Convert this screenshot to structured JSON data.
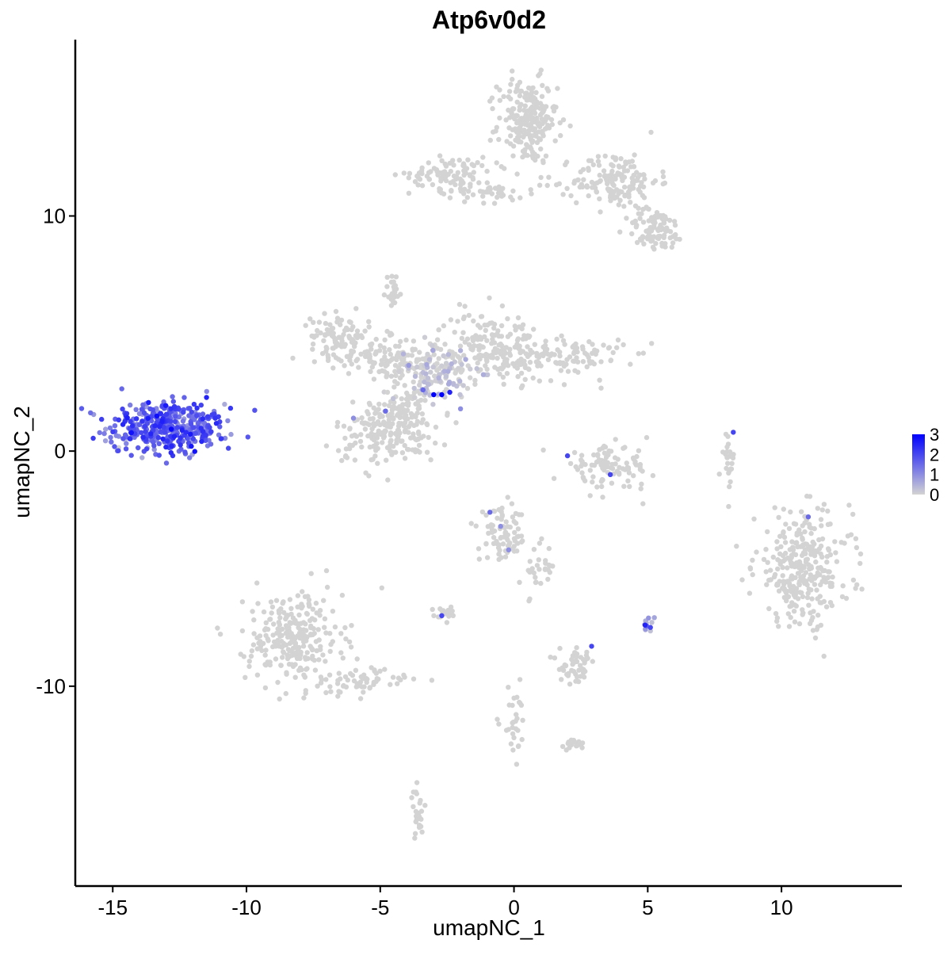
{
  "chart_data": {
    "type": "scatter",
    "title": "Atp6v0d2",
    "xlabel": "umapNC_1",
    "ylabel": "umapNC_2",
    "xlim": [
      -16.4,
      14.5
    ],
    "ylim": [
      -18.5,
      17.5
    ],
    "x_ticks": [
      -15,
      -10,
      -5,
      0,
      5,
      10
    ],
    "x_tick_labels": [
      "-15",
      "-10",
      "-5",
      "0",
      "5",
      "10"
    ],
    "y_ticks": [
      -10,
      0,
      10
    ],
    "y_tick_labels": [
      "-10",
      "0",
      "10"
    ],
    "grid": false,
    "legend": {
      "placement": "right",
      "type": "colorbar",
      "min": 0,
      "max": 3,
      "ticks": [
        3,
        2,
        1,
        0
      ],
      "tick_labels": [
        "3",
        "2",
        "1",
        "0"
      ],
      "low_color": "#d3d3d3",
      "high_color": "#0000ff"
    },
    "colors": {
      "low": "#d3d3d3",
      "high": "#0000ff"
    },
    "clusters": [
      {
        "cx": -13.0,
        "cy": 1.0,
        "sx": 1.1,
        "sy": 0.55,
        "n": 420,
        "expr_mean": 1.6,
        "expr_sd": 0.5
      },
      {
        "cx": 0.5,
        "cy": 14.0,
        "sx": 0.55,
        "sy": 0.9,
        "n": 230,
        "expr_mean": 0,
        "expr_sd": 0
      },
      {
        "cx": 3.8,
        "cy": 11.5,
        "sx": 0.8,
        "sy": 0.6,
        "n": 150,
        "expr_mean": 0,
        "expr_sd": 0
      },
      {
        "cx": 5.3,
        "cy": 9.4,
        "sx": 0.55,
        "sy": 0.45,
        "n": 90,
        "expr_mean": 0,
        "expr_sd": 0
      },
      {
        "cx": -2.3,
        "cy": 11.8,
        "sx": 0.8,
        "sy": 0.35,
        "n": 90,
        "expr_mean": 0,
        "expr_sd": 0
      },
      {
        "cx": -1.0,
        "cy": 11.0,
        "sx": 1.0,
        "sy": 0.2,
        "n": 40,
        "expr_mean": 0,
        "expr_sd": 0
      },
      {
        "cx": -6.5,
        "cy": 4.9,
        "sx": 0.55,
        "sy": 0.45,
        "n": 90,
        "expr_mean": 0,
        "expr_sd": 0
      },
      {
        "cx": -4.8,
        "cy": 4.0,
        "sx": 1.0,
        "sy": 0.4,
        "n": 120,
        "expr_mean": 0,
        "expr_sd": 0
      },
      {
        "cx": -3.0,
        "cy": 3.3,
        "sx": 0.7,
        "sy": 0.6,
        "n": 140,
        "expr_mean": 0.1,
        "expr_sd": 0.3
      },
      {
        "cx": -1.0,
        "cy": 4.5,
        "sx": 0.9,
        "sy": 0.7,
        "n": 160,
        "expr_mean": 0,
        "expr_sd": 0
      },
      {
        "cx": 1.7,
        "cy": 4.0,
        "sx": 1.2,
        "sy": 0.5,
        "n": 130,
        "expr_mean": 0,
        "expr_sd": 0
      },
      {
        "cx": -4.8,
        "cy": 0.8,
        "sx": 0.95,
        "sy": 0.7,
        "n": 170,
        "expr_mean": 0,
        "expr_sd": 0
      },
      {
        "cx": -4.0,
        "cy": 1.8,
        "sx": 0.4,
        "sy": 0.6,
        "n": 70,
        "expr_mean": 0,
        "expr_sd": 0
      },
      {
        "cx": -4.5,
        "cy": 6.8,
        "sx": 0.15,
        "sy": 0.4,
        "n": 25,
        "expr_mean": 0,
        "expr_sd": 0
      },
      {
        "cx": -8.2,
        "cy": -8.0,
        "sx": 0.9,
        "sy": 1.0,
        "n": 260,
        "expr_mean": 0,
        "expr_sd": 0
      },
      {
        "cx": -5.8,
        "cy": -9.8,
        "sx": 0.9,
        "sy": 0.3,
        "n": 60,
        "expr_mean": 0,
        "expr_sd": 0
      },
      {
        "cx": 10.8,
        "cy": -5.0,
        "sx": 0.9,
        "sy": 1.2,
        "n": 300,
        "expr_mean": 0,
        "expr_sd": 0
      },
      {
        "cx": 3.5,
        "cy": -0.7,
        "sx": 0.8,
        "sy": 0.45,
        "n": 100,
        "expr_mean": 0,
        "expr_sd": 0
      },
      {
        "cx": -0.4,
        "cy": -3.6,
        "sx": 0.45,
        "sy": 0.55,
        "n": 80,
        "expr_mean": 0,
        "expr_sd": 0
      },
      {
        "cx": 0.9,
        "cy": -5.0,
        "sx": 0.3,
        "sy": 0.6,
        "n": 30,
        "expr_mean": 0,
        "expr_sd": 0
      },
      {
        "cx": -2.6,
        "cy": -6.9,
        "sx": 0.25,
        "sy": 0.15,
        "n": 20,
        "expr_mean": 0,
        "expr_sd": 0
      },
      {
        "cx": 2.4,
        "cy": -9.2,
        "sx": 0.35,
        "sy": 0.35,
        "n": 50,
        "expr_mean": 0,
        "expr_sd": 0
      },
      {
        "cx": 8.0,
        "cy": -0.3,
        "sx": 0.12,
        "sy": 0.6,
        "n": 25,
        "expr_mean": 0,
        "expr_sd": 0
      },
      {
        "cx": 0.0,
        "cy": -11.5,
        "sx": 0.25,
        "sy": 0.7,
        "n": 30,
        "expr_mean": 0,
        "expr_sd": 0
      },
      {
        "cx": 2.2,
        "cy": -12.5,
        "sx": 0.25,
        "sy": 0.15,
        "n": 18,
        "expr_mean": 0,
        "expr_sd": 0
      },
      {
        "cx": -3.6,
        "cy": -15.5,
        "sx": 0.12,
        "sy": 0.5,
        "n": 25,
        "expr_mean": 0,
        "expr_sd": 0
      },
      {
        "cx": 5.0,
        "cy": -7.3,
        "sx": 0.1,
        "sy": 0.2,
        "n": 10,
        "expr_mean": 0.3,
        "expr_sd": 0.5
      }
    ],
    "highlighted_points": [
      {
        "x": -3.0,
        "y": 2.4,
        "expr": 3
      },
      {
        "x": -2.7,
        "y": 2.4,
        "expr": 3
      },
      {
        "x": -2.4,
        "y": 2.5,
        "expr": 2.5
      },
      {
        "x": -3.4,
        "y": 2.6,
        "expr": 1.5
      },
      {
        "x": -4.8,
        "y": 1.7,
        "expr": 1.5
      },
      {
        "x": -6.0,
        "y": 1.4,
        "expr": 1
      },
      {
        "x": -2.0,
        "y": 1.8,
        "expr": 1
      },
      {
        "x": 2.0,
        "y": -0.2,
        "expr": 2
      },
      {
        "x": 3.6,
        "y": -1.0,
        "expr": 2
      },
      {
        "x": 8.2,
        "y": 0.8,
        "expr": 2
      },
      {
        "x": 11.0,
        "y": -2.8,
        "expr": 1.5
      },
      {
        "x": -0.9,
        "y": -2.6,
        "expr": 1.5
      },
      {
        "x": -0.5,
        "y": -3.2,
        "expr": 1
      },
      {
        "x": -0.2,
        "y": -4.2,
        "expr": 1
      },
      {
        "x": -2.7,
        "y": -7.0,
        "expr": 2
      },
      {
        "x": 2.9,
        "y": -8.3,
        "expr": 2
      },
      {
        "x": 4.9,
        "y": -7.4,
        "expr": 2.5
      },
      {
        "x": 5.1,
        "y": -7.5,
        "expr": 2
      }
    ]
  }
}
